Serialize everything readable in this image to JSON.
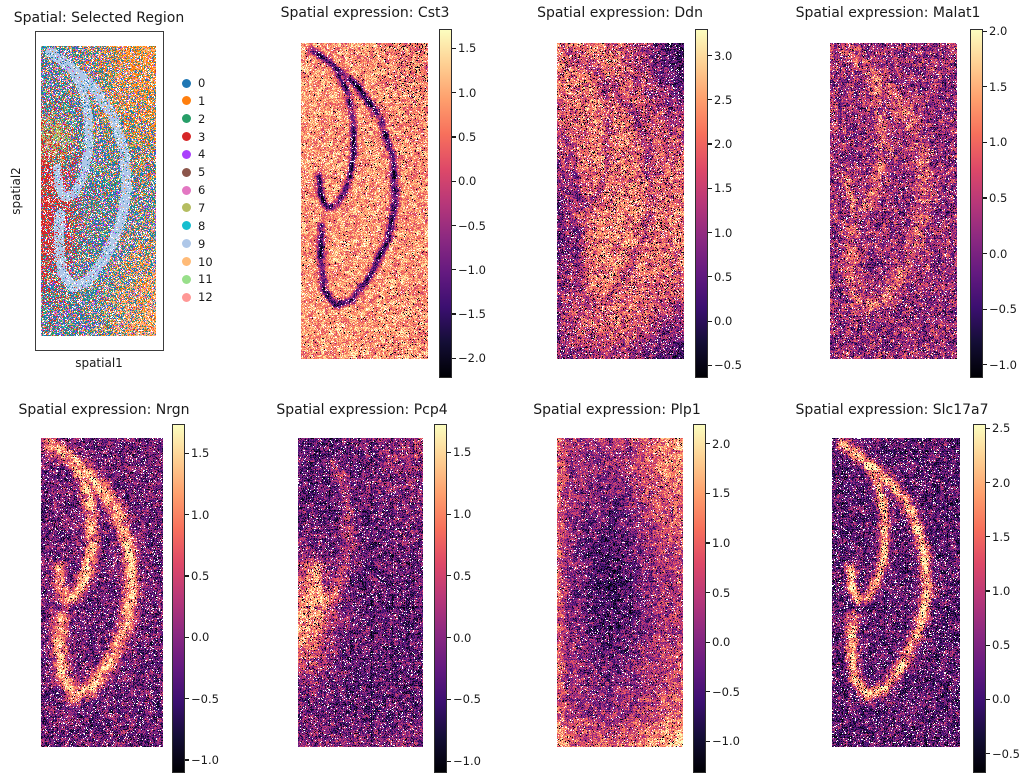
{
  "figure": {
    "background": "#ffffff",
    "text_color": "#1a1a1a"
  },
  "chart_data": {
    "type": "scatter",
    "subtype": "spatial-transcriptomics-panel-grid",
    "grid": {
      "rows": 2,
      "cols": 4
    },
    "colormap": {
      "name": "magma",
      "stops": [
        [
          0,
          "#000004"
        ],
        [
          0.1,
          "#140e36"
        ],
        [
          0.2,
          "#3b0f70"
        ],
        [
          0.3,
          "#641a80"
        ],
        [
          0.4,
          "#8c2981"
        ],
        [
          0.5,
          "#b73779"
        ],
        [
          0.6,
          "#de4968"
        ],
        [
          0.7,
          "#f7705c"
        ],
        [
          0.8,
          "#fe9f6d"
        ],
        [
          0.9,
          "#fecf92"
        ],
        [
          1,
          "#fcfdbf"
        ]
      ]
    },
    "cluster_palette": [
      "#1f77b4",
      "#ff7f0e",
      "#279e68",
      "#d62728",
      "#aa40fc",
      "#8c564b",
      "#e377c2",
      "#b5bd61",
      "#17becf",
      "#aec7e8",
      "#ffbb78",
      "#98df8a",
      "#ff9896"
    ],
    "panels": [
      {
        "id": "selected-region",
        "title": "Spatial: Selected Region",
        "type": "categorical",
        "xlabel": "spatial1",
        "ylabel": "spatial2",
        "legend": [
          {
            "label": "0",
            "color": "#1f77b4"
          },
          {
            "label": "1",
            "color": "#ff7f0e"
          },
          {
            "label": "2",
            "color": "#279e68"
          },
          {
            "label": "3",
            "color": "#d62728"
          },
          {
            "label": "4",
            "color": "#aa40fc"
          },
          {
            "label": "5",
            "color": "#8c564b"
          },
          {
            "label": "6",
            "color": "#e377c2"
          },
          {
            "label": "7",
            "color": "#b5bd61"
          },
          {
            "label": "8",
            "color": "#17becf"
          },
          {
            "label": "9",
            "color": "#aec7e8"
          },
          {
            "label": "10",
            "color": "#ffbb78"
          },
          {
            "label": "11",
            "color": "#98df8a"
          },
          {
            "label": "12",
            "color": "#ff9896"
          }
        ],
        "description": "Spots colored by cluster id; light-blue cluster 9 traces the hippocampal pyramidal and dentate bands; red cluster 3 concentrated mid-left; orange clusters 1 and 10 in top-right and bottom-right corners."
      },
      {
        "id": "cst3",
        "title": "Spatial expression: Cst3",
        "gene": "Cst3",
        "type": "expression",
        "colormap": "magma",
        "vmin": -2.2,
        "vmax": 1.72,
        "colorbar_tick_values": [
          1.5,
          1.0,
          0.5,
          0.0,
          -0.5,
          -1.0,
          -1.5,
          -2.0
        ],
        "colorbar_ticks": [
          "1.5",
          "1.0",
          "0.5",
          "0.0",
          "−0.5",
          "−1.0",
          "−1.5",
          "−2.0"
        ],
        "pattern": "high expression (cream/orange) across tissue, dark purple hippocampal bands, black speckles top-right"
      },
      {
        "id": "ddn",
        "title": "Spatial expression: Ddn",
        "gene": "Ddn",
        "type": "expression",
        "colormap": "magma",
        "vmin": -0.62,
        "vmax": 3.3,
        "colorbar_tick_values": [
          3.0,
          2.5,
          2.0,
          1.5,
          1.0,
          0.5,
          0.0,
          -0.5
        ],
        "colorbar_ticks": [
          "3.0",
          "2.5",
          "2.0",
          "1.5",
          "1.0",
          "0.5",
          "0.0",
          "−0.5"
        ],
        "pattern": "bright crescent interior, dark top-right corner, dark left edge and bottom"
      },
      {
        "id": "malat1",
        "title": "Spatial expression: Malat1",
        "gene": "Malat1",
        "type": "expression",
        "colormap": "magma",
        "vmin": -1.1,
        "vmax": 2.02,
        "colorbar_tick_values": [
          2.0,
          1.5,
          1.0,
          0.5,
          0.0,
          -0.5,
          -1.0
        ],
        "colorbar_ticks": [
          "2.0",
          "1.5",
          "1.0",
          "0.5",
          "0.0",
          "−0.5",
          "−1.0"
        ],
        "pattern": "mottled mid/dark tissue with pink hippocampal bands and faint grid artifacts"
      },
      {
        "id": "nrgn",
        "title": "Spatial expression: Nrgn",
        "gene": "Nrgn",
        "type": "expression",
        "colormap": "magma",
        "vmin": -1.09,
        "vmax": 1.74,
        "colorbar_tick_values": [
          1.5,
          1.0,
          0.5,
          0.0,
          -0.5,
          -1.0
        ],
        "colorbar_ticks": [
          "1.5",
          "1.0",
          "0.5",
          "0.0",
          "−0.5",
          "−1.0"
        ],
        "pattern": "bright thick orange bands along hippocampal layers on dark speckled background"
      },
      {
        "id": "pcp4",
        "title": "Spatial expression: Pcp4",
        "gene": "Pcp4",
        "type": "expression",
        "colormap": "magma",
        "vmin": -1.08,
        "vmax": 1.73,
        "colorbar_tick_values": [
          1.5,
          1.0,
          0.5,
          0.0,
          -0.5,
          -1.0
        ],
        "colorbar_ticks": [
          "1.5",
          "1.0",
          "0.5",
          "0.0",
          "−0.5",
          "−1.0"
        ],
        "pattern": "dark tissue with bright cream blob at mid-left, purple inner band, lighter top-right"
      },
      {
        "id": "plp1",
        "title": "Spatial expression: Plp1",
        "gene": "Plp1",
        "type": "expression",
        "colormap": "magma",
        "vmin": -1.3,
        "vmax": 2.2,
        "colorbar_tick_values": [
          2.0,
          1.5,
          1.0,
          0.5,
          0.0,
          -0.5,
          -1.0
        ],
        "colorbar_ticks": [
          "2.0",
          "1.5",
          "1.0",
          "0.5",
          "0.0",
          "−0.5",
          "−1.0"
        ],
        "pattern": "large dark purple central mass, bright cream top-right corner and bottom/left edges"
      },
      {
        "id": "slc17a7",
        "title": "Spatial expression: Slc17a7",
        "gene": "Slc17a7",
        "type": "expression",
        "colormap": "magma",
        "vmin": -0.66,
        "vmax": 2.54,
        "colorbar_tick_values": [
          2.5,
          2.0,
          1.5,
          1.0,
          0.5,
          0.0,
          -0.5
        ],
        "colorbar_ticks": [
          "2.5",
          "2.0",
          "1.5",
          "1.0",
          "0.5",
          "0.0",
          "−0.5"
        ],
        "pattern": "dark speckled background with bright salmon-pink hippocampal bands"
      }
    ]
  }
}
